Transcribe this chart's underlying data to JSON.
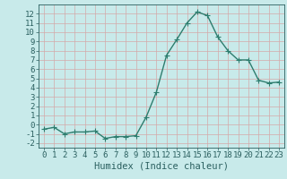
{
  "x": [
    0,
    1,
    2,
    3,
    4,
    5,
    6,
    7,
    8,
    9,
    10,
    11,
    12,
    13,
    14,
    15,
    16,
    17,
    18,
    19,
    20,
    21,
    22,
    23
  ],
  "y": [
    -0.5,
    -0.3,
    -1.0,
    -0.8,
    -0.8,
    -0.7,
    -1.5,
    -1.3,
    -1.3,
    -1.2,
    0.8,
    3.5,
    7.5,
    9.2,
    11.0,
    12.2,
    11.8,
    9.5,
    8.0,
    7.0,
    7.0,
    4.8,
    4.5,
    4.6
  ],
  "line_color": "#2d7d6e",
  "marker": "+",
  "markersize": 4,
  "linewidth": 1.0,
  "xlabel": "Humidex (Indice chaleur)",
  "xlim": [
    -0.5,
    23.5
  ],
  "ylim": [
    -2.5,
    13.0
  ],
  "yticks": [
    -2,
    -1,
    0,
    1,
    2,
    3,
    4,
    5,
    6,
    7,
    8,
    9,
    10,
    11,
    12
  ],
  "xticks": [
    0,
    1,
    2,
    3,
    4,
    5,
    6,
    7,
    8,
    9,
    10,
    11,
    12,
    13,
    14,
    15,
    16,
    17,
    18,
    19,
    20,
    21,
    22,
    23
  ],
  "grid_color": "#d4a8a8",
  "bg_color": "#c8eaea",
  "font_color": "#2a5f5f",
  "tick_fontsize": 6.5,
  "xlabel_fontsize": 7.5
}
